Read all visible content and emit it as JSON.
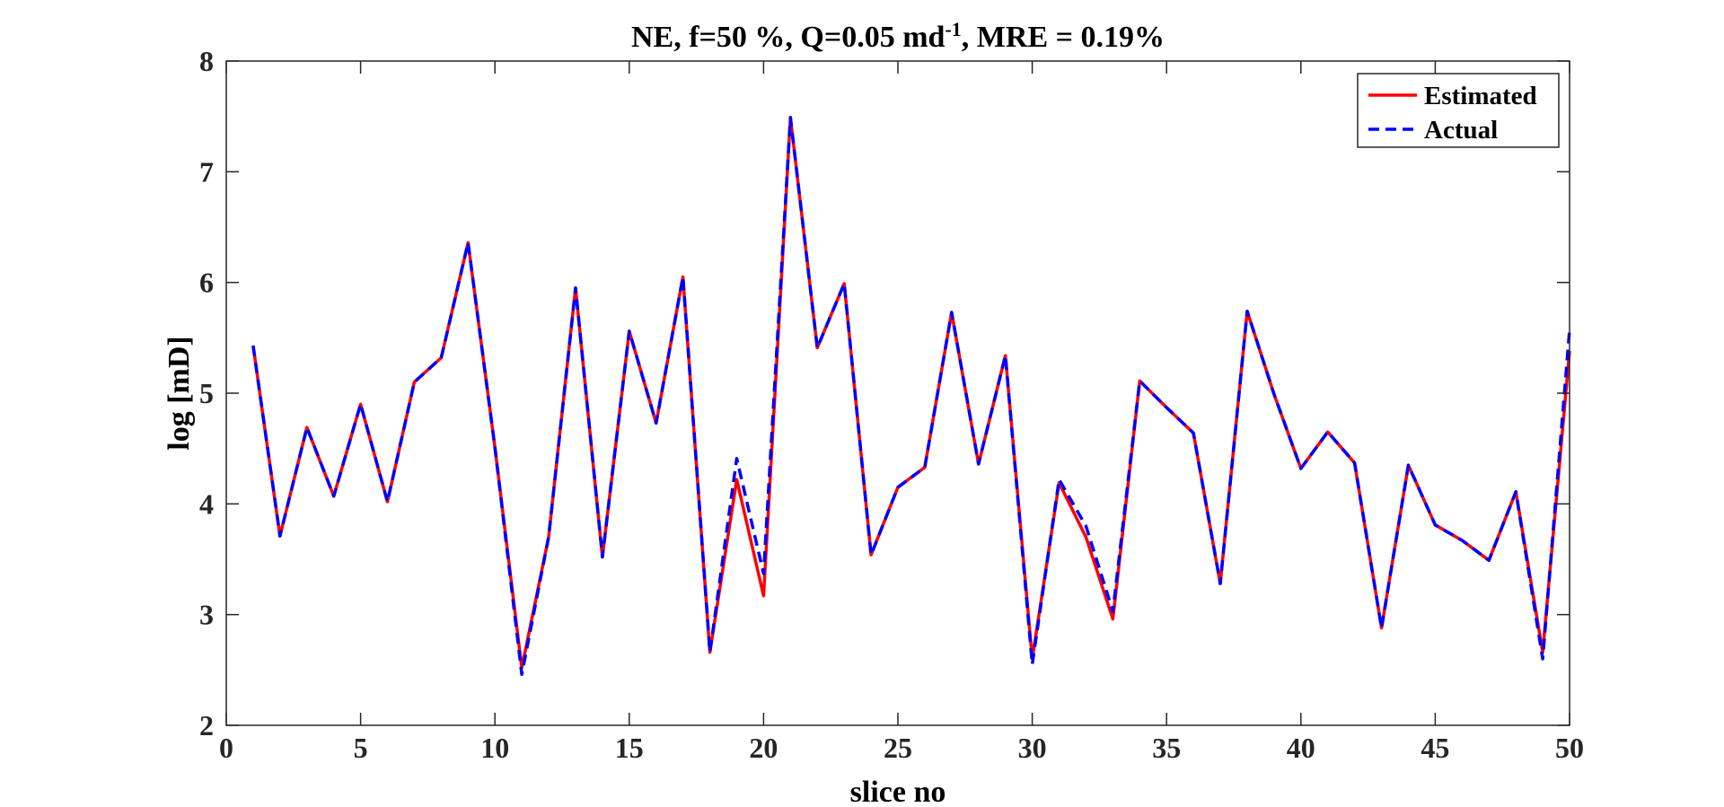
{
  "chart_data": {
    "type": "line",
    "title": "NE, f=50 %, Q=0.05 md-1, MRE = 0.19%",
    "title_parts": {
      "main": "NE, f=50 %, Q=0.05 md",
      "superscript": "-1",
      "tail": ", MRE = 0.19%"
    },
    "xlabel": "slice no",
    "ylabel": "log [mD]",
    "xlim": [
      0,
      50
    ],
    "ylim": [
      2,
      8
    ],
    "xticks": [
      0,
      5,
      10,
      15,
      20,
      25,
      30,
      35,
      40,
      45,
      50
    ],
    "yticks": [
      2,
      3,
      4,
      5,
      6,
      7,
      8
    ],
    "legend_position": "top-right",
    "x": [
      1,
      2,
      3,
      4,
      5,
      6,
      7,
      8,
      9,
      10,
      11,
      12,
      13,
      14,
      15,
      16,
      17,
      18,
      19,
      20,
      21,
      22,
      23,
      24,
      25,
      26,
      27,
      28,
      29,
      30,
      31,
      32,
      33,
      34,
      35,
      36,
      37,
      38,
      39,
      40,
      41,
      42,
      43,
      44,
      45,
      46,
      47,
      48,
      49,
      50
    ],
    "series": [
      {
        "name": "Estimated",
        "color": "#ff0000",
        "style": "solid",
        "values": [
          5.43,
          3.71,
          4.69,
          4.07,
          4.9,
          4.02,
          5.1,
          5.32,
          6.36,
          4.51,
          2.52,
          3.7,
          5.95,
          3.52,
          5.56,
          4.73,
          6.05,
          2.66,
          4.22,
          3.17,
          7.49,
          5.41,
          5.99,
          3.54,
          4.15,
          4.33,
          5.73,
          4.36,
          5.34,
          2.6,
          4.19,
          3.7,
          2.96,
          5.11,
          4.87,
          4.64,
          3.28,
          5.74,
          4.99,
          4.32,
          4.65,
          4.37,
          2.88,
          4.35,
          3.81,
          3.67,
          3.49,
          4.11,
          2.66,
          5.38
        ]
      },
      {
        "name": "Actual",
        "color": "#0000ff",
        "style": "dashed",
        "values": [
          5.43,
          3.71,
          4.69,
          4.07,
          4.9,
          4.02,
          5.1,
          5.32,
          6.36,
          4.51,
          2.46,
          3.7,
          5.95,
          3.52,
          5.56,
          4.73,
          6.05,
          2.66,
          4.41,
          3.37,
          7.49,
          5.41,
          5.99,
          3.54,
          4.15,
          4.33,
          5.73,
          4.36,
          5.34,
          2.55,
          4.22,
          3.8,
          3.03,
          5.11,
          4.87,
          4.64,
          3.28,
          5.74,
          4.99,
          4.32,
          4.65,
          4.37,
          2.88,
          4.35,
          3.81,
          3.67,
          3.49,
          4.11,
          2.6,
          5.57
        ]
      }
    ]
  }
}
